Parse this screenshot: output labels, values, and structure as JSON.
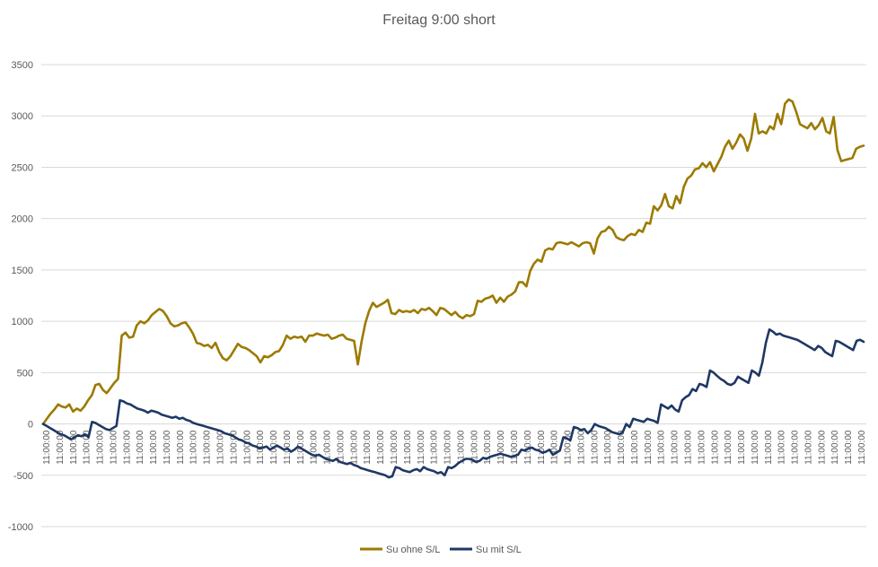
{
  "chart_data": {
    "type": "line",
    "title": "Freitag 9:00 short",
    "xlabel": "",
    "ylabel": "",
    "ylim": [
      -1000,
      3500
    ],
    "yticks": [
      "3500",
      "3000",
      "2500",
      "2000",
      "1500",
      "1000",
      "500",
      "0",
      "-500",
      "-1000"
    ],
    "ytick_values": [
      3500,
      3000,
      2500,
      2000,
      1500,
      1000,
      500,
      0,
      -500,
      -1000
    ],
    "x_tick_label": "11:00:00",
    "x_tick_count": 62,
    "grid": true,
    "legend_position": "bottom",
    "series": [
      {
        "name": "Su ohne S/L",
        "color": "#9c7a00",
        "values": [
          0,
          50,
          100,
          140,
          190,
          170,
          160,
          190,
          120,
          150,
          130,
          170,
          230,
          280,
          380,
          390,
          330,
          300,
          350,
          400,
          440,
          860,
          890,
          840,
          850,
          960,
          1000,
          980,
          1010,
          1060,
          1090,
          1120,
          1100,
          1050,
          980,
          950,
          960,
          980,
          990,
          940,
          880,
          790,
          780,
          760,
          770,
          740,
          790,
          700,
          640,
          620,
          660,
          720,
          780,
          750,
          740,
          720,
          690,
          660,
          600,
          660,
          650,
          670,
          700,
          710,
          770,
          860,
          830,
          850,
          840,
          850,
          800,
          860,
          860,
          880,
          870,
          860,
          870,
          830,
          840,
          860,
          870,
          830,
          820,
          810,
          580,
          800,
          980,
          1100,
          1180,
          1140,
          1160,
          1180,
          1210,
          1080,
          1070,
          1110,
          1090,
          1100,
          1090,
          1110,
          1080,
          1120,
          1110,
          1130,
          1100,
          1060,
          1130,
          1120,
          1090,
          1060,
          1090,
          1050,
          1030,
          1060,
          1050,
          1070,
          1200,
          1190,
          1220,
          1230,
          1250,
          1180,
          1230,
          1190,
          1240,
          1260,
          1290,
          1380,
          1380,
          1340,
          1490,
          1560,
          1600,
          1580,
          1690,
          1710,
          1700,
          1760,
          1770,
          1760,
          1750,
          1770,
          1750,
          1730,
          1760,
          1770,
          1760,
          1660,
          1810,
          1870,
          1880,
          1920,
          1890,
          1820,
          1800,
          1790,
          1830,
          1850,
          1840,
          1890,
          1870,
          1960,
          1950,
          2120,
          2080,
          2130,
          2240,
          2120,
          2100,
          2220,
          2150,
          2310,
          2390,
          2420,
          2480,
          2490,
          2540,
          2500,
          2550,
          2460,
          2530,
          2600,
          2700,
          2760,
          2680,
          2740,
          2820,
          2780,
          2660,
          2780,
          3020,
          2830,
          2850,
          2830,
          2900,
          2870,
          3020,
          2920,
          3120,
          3160,
          3140,
          3040,
          2920,
          2900,
          2880,
          2930,
          2870,
          2910,
          2980,
          2850,
          2830,
          2990,
          2670,
          2560,
          2570,
          2580,
          2590,
          2680,
          2700,
          2710
        ]
      },
      {
        "name": "Su mit S/L",
        "color": "#1f3864",
        "values": [
          0,
          -20,
          -40,
          -60,
          -80,
          -100,
          -110,
          -130,
          -150,
          -130,
          -110,
          -120,
          -100,
          -130,
          20,
          10,
          -10,
          -30,
          -50,
          -60,
          -40,
          -20,
          230,
          220,
          200,
          190,
          170,
          150,
          140,
          130,
          110,
          130,
          120,
          110,
          90,
          80,
          70,
          60,
          70,
          50,
          60,
          40,
          30,
          10,
          0,
          -10,
          -20,
          -30,
          -40,
          -50,
          -60,
          -70,
          -90,
          -100,
          -110,
          -130,
          -150,
          -160,
          -180,
          -190,
          -210,
          -220,
          -240,
          -230,
          -220,
          -250,
          -230,
          -210,
          -230,
          -250,
          -240,
          -270,
          -250,
          -220,
          -240,
          -260,
          -280,
          -300,
          -310,
          -300,
          -320,
          -340,
          -350,
          -360,
          -340,
          -370,
          -380,
          -390,
          -380,
          -400,
          -410,
          -430,
          -440,
          -450,
          -460,
          -470,
          -480,
          -490,
          -500,
          -520,
          -510,
          -420,
          -430,
          -450,
          -460,
          -470,
          -450,
          -440,
          -460,
          -420,
          -440,
          -450,
          -460,
          -480,
          -470,
          -500,
          -420,
          -430,
          -410,
          -380,
          -360,
          -340,
          -340,
          -350,
          -370,
          -360,
          -330,
          -340,
          -320,
          -310,
          -300,
          -290,
          -300,
          -310,
          -320,
          -310,
          -300,
          -250,
          -260,
          -240,
          -230,
          -250,
          -260,
          -280,
          -270,
          -250,
          -300,
          -280,
          -260,
          -130,
          -140,
          -160,
          -30,
          -40,
          -60,
          -50,
          -90,
          -60,
          0,
          -20,
          -30,
          -40,
          -60,
          -80,
          -90,
          -100,
          -80,
          0,
          -30,
          50,
          40,
          30,
          20,
          50,
          40,
          30,
          10,
          190,
          170,
          150,
          180,
          140,
          120,
          230,
          260,
          280,
          340,
          320,
          390,
          380,
          360,
          520,
          500,
          470,
          440,
          420,
          390,
          380,
          400,
          460,
          440,
          420,
          400,
          520,
          500,
          470,
          600,
          790,
          920,
          900,
          870,
          880,
          860,
          850,
          840,
          830,
          820,
          800,
          780,
          760,
          740,
          720,
          760,
          740,
          700,
          680,
          660,
          810,
          800,
          780,
          760,
          740,
          720,
          810,
          820,
          800
        ]
      }
    ]
  }
}
